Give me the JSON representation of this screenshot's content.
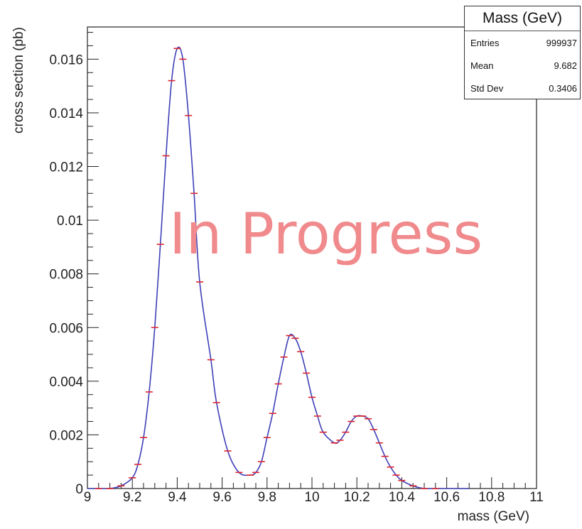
{
  "chart_data": {
    "type": "line",
    "xlabel": "mass (GeV)",
    "ylabel": "cross section (pb)",
    "xlim": [
      9,
      11
    ],
    "ylim": [
      0,
      0.0172
    ],
    "x_ticks": [
      "9",
      "9.2",
      "9.4",
      "9.6",
      "9.8",
      "10",
      "10.2",
      "10.4",
      "10.6",
      "10.8",
      "11"
    ],
    "y_ticks": [
      "0",
      "0.002",
      "0.004",
      "0.006",
      "0.008",
      "0.01",
      "0.012",
      "0.014",
      "0.016"
    ],
    "grid": false,
    "series": [
      {
        "marker": "red horizontal dash",
        "line": "blue smooth curve",
        "points": [
          [
            9.05,
            0.0
          ],
          [
            9.1,
            0.0
          ],
          [
            9.15,
            0.0001
          ],
          [
            9.2,
            0.0004
          ],
          [
            9.225,
            0.0009
          ],
          [
            9.25,
            0.0019
          ],
          [
            9.275,
            0.0036
          ],
          [
            9.3,
            0.006
          ],
          [
            9.325,
            0.0091
          ],
          [
            9.35,
            0.0124
          ],
          [
            9.375,
            0.0152
          ],
          [
            9.4,
            0.0164
          ],
          [
            9.425,
            0.016
          ],
          [
            9.45,
            0.0139
          ],
          [
            9.475,
            0.011
          ],
          [
            9.5,
            0.0077
          ],
          [
            9.55,
            0.0048
          ],
          [
            9.575,
            0.0032
          ],
          [
            9.625,
            0.0014
          ],
          [
            9.675,
            0.0006
          ],
          [
            9.725,
            0.0005
          ],
          [
            9.75,
            0.0006
          ],
          [
            9.775,
            0.001
          ],
          [
            9.8,
            0.0019
          ],
          [
            9.825,
            0.0028
          ],
          [
            9.85,
            0.0039
          ],
          [
            9.875,
            0.0049
          ],
          [
            9.9,
            0.0057
          ],
          [
            9.925,
            0.0056
          ],
          [
            9.95,
            0.0051
          ],
          [
            9.975,
            0.0043
          ],
          [
            10.0,
            0.0034
          ],
          [
            10.025,
            0.0027
          ],
          [
            10.05,
            0.0021
          ],
          [
            10.1,
            0.0017
          ],
          [
            10.125,
            0.0018
          ],
          [
            10.15,
            0.0021
          ],
          [
            10.175,
            0.0025
          ],
          [
            10.2,
            0.0027
          ],
          [
            10.225,
            0.0027
          ],
          [
            10.25,
            0.0026
          ],
          [
            10.275,
            0.0022
          ],
          [
            10.3,
            0.0017
          ],
          [
            10.325,
            0.0012
          ],
          [
            10.35,
            0.0008
          ],
          [
            10.375,
            0.0005
          ],
          [
            10.4,
            0.0003
          ],
          [
            10.45,
            0.0001
          ],
          [
            10.5,
            0.0
          ],
          [
            10.55,
            0.0
          ]
        ]
      }
    ],
    "colors": {
      "line": "#3f3fb8",
      "marker": "#e0242c",
      "watermark": "#f08a8c"
    }
  },
  "stats": {
    "title": "Mass (GeV)",
    "rows": [
      {
        "label": "Entries",
        "value": "999937"
      },
      {
        "label": "Mean",
        "value": "9.682"
      },
      {
        "label": "Std Dev",
        "value": "0.3406"
      }
    ]
  },
  "watermark": "In Progress"
}
